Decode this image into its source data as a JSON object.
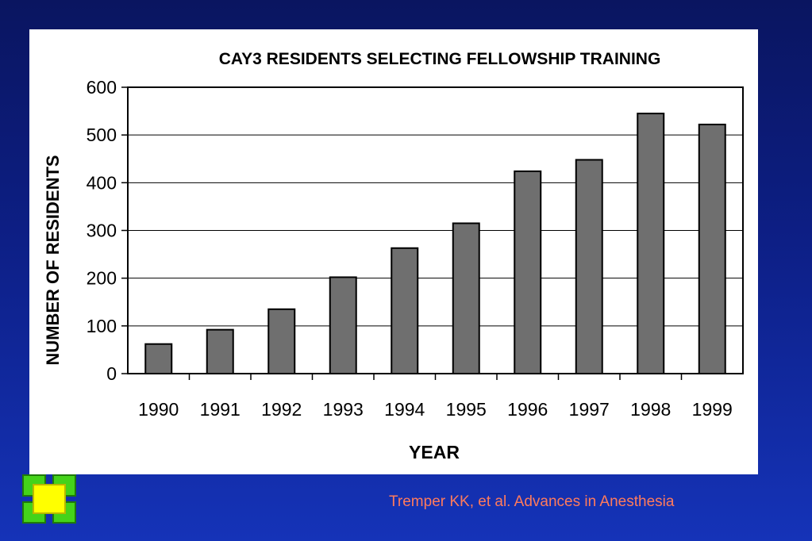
{
  "chart_data": {
    "type": "bar",
    "title": "CAY3 RESIDENTS SELECTING FELLOWSHIP TRAINING",
    "xlabel": "YEAR",
    "ylabel": "NUMBER OF RESIDENTS",
    "categories": [
      "1990",
      "1991",
      "1992",
      "1993",
      "1994",
      "1995",
      "1996",
      "1997",
      "1998",
      "1999"
    ],
    "values": [
      62,
      92,
      135,
      202,
      263,
      315,
      424,
      448,
      545,
      522
    ],
    "ylim": [
      0,
      600
    ],
    "yticks": [
      "0",
      "100",
      "200",
      "300",
      "400",
      "500",
      "600"
    ],
    "grid": true,
    "legend": "none",
    "bar_color": "#6f6f6f"
  },
  "citation": "Tremper KK, et al. Advances in Anesthesia",
  "colors": {
    "background": "#0d1f86",
    "citation": "#ff7b5c",
    "logo_green": "#44d31a",
    "logo_yellow": "#ffff00"
  }
}
